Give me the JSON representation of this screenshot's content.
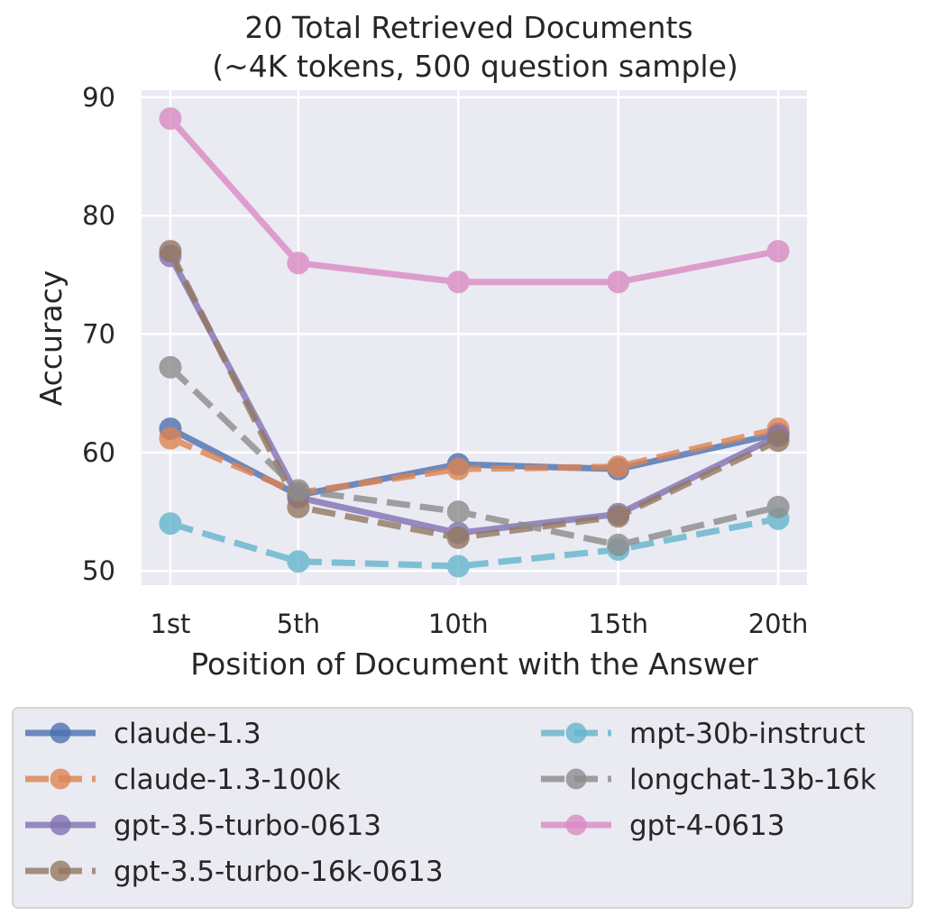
{
  "chart_data": {
    "type": "line",
    "title": "20 Total Retrieved Documents",
    "subtitle": "(~4K tokens, 500 question sample)",
    "xlabel": "Position of Document with the Answer",
    "ylabel": "Accuracy",
    "categories": [
      "1st",
      "5th",
      "10th",
      "15th",
      "20th"
    ],
    "x": [
      1,
      5,
      10,
      15,
      20
    ],
    "yticks": [
      "50",
      "60",
      "70",
      "80",
      "90"
    ],
    "ylim": [
      48.8,
      90.6
    ],
    "xlim": [
      0.1,
      20.9
    ],
    "grid": true,
    "legend_position": "bottom",
    "series": [
      {
        "name": "claude-1.3",
        "values": [
          62.0,
          56.4,
          59.0,
          58.6,
          61.6
        ],
        "color": "#4C72B0",
        "dashed": false
      },
      {
        "name": "claude-1.3-100k",
        "values": [
          61.2,
          56.6,
          58.6,
          58.8,
          62.0
        ],
        "color": "#DD8452",
        "dashed": true
      },
      {
        "name": "gpt-3.5-turbo-0613",
        "values": [
          76.6,
          56.2,
          53.2,
          54.8,
          61.4
        ],
        "color": "#8172B3",
        "dashed": false
      },
      {
        "name": "gpt-3.5-turbo-16k-0613",
        "values": [
          77.0,
          55.4,
          52.8,
          54.6,
          61.0
        ],
        "color": "#937860",
        "dashed": true
      },
      {
        "name": "mpt-30b-instruct",
        "values": [
          54.0,
          50.8,
          50.4,
          51.8,
          54.4
        ],
        "color": "#64B5CD",
        "dashed": true
      },
      {
        "name": "longchat-13b-16k",
        "values": [
          67.2,
          56.8,
          55.0,
          52.2,
          55.4
        ],
        "color": "#8C8C8C",
        "dashed": true
      },
      {
        "name": "gpt-4-0613",
        "values": [
          88.2,
          76.0,
          74.4,
          74.4,
          77.0
        ],
        "color": "#DA8BC3",
        "dashed": false
      }
    ],
    "legend_order": [
      "claude-1.3",
      "claude-1.3-100k",
      "gpt-3.5-turbo-0613",
      "gpt-3.5-turbo-16k-0613",
      "mpt-30b-instruct",
      "longchat-13b-16k",
      "gpt-4-0613"
    ]
  }
}
